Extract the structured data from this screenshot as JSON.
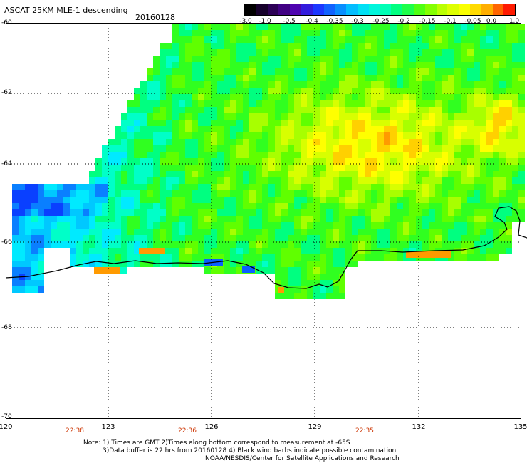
{
  "header": {
    "title": "ASCAT 25KM MLE-1 descending",
    "date": "20160128"
  },
  "colorbar": {
    "labels": [
      "-3.0",
      "-1.0",
      "-0.5",
      "-0.4",
      "-0.35",
      "-0.3",
      "-0.25",
      "-0.2",
      "-0.15",
      "-0.1",
      "-0.05",
      "0.0",
      "1.0"
    ],
    "colors": [
      "#000000",
      "#2a0052",
      "#5200a8",
      "#1f2cff",
      "#0a7fff",
      "#00d8ff",
      "#00ffd0",
      "#00ff6a",
      "#60ff00",
      "#c8ff00",
      "#ffff00",
      "#ffaa00",
      "#ff1a00"
    ]
  },
  "lat_labels": [
    "-60",
    "-62",
    "-64",
    "-66",
    "-68",
    "-70"
  ],
  "lon_labels": [
    "120",
    "123",
    "126",
    "129",
    "132",
    "135"
  ],
  "time_labels": [
    "22:38",
    "22:36",
    "22:35"
  ],
  "notes": {
    "line1": "Note: 1) Times are GMT 2)Times along bottom correspond to measurement at -65S",
    "line2": "3)Data buffer is 22 hrs from 20160128 4) Black wind barbs indicate possible contamination",
    "line3": "NOAA/NESDIS/Center for Satellite Applications and Research"
  }
}
